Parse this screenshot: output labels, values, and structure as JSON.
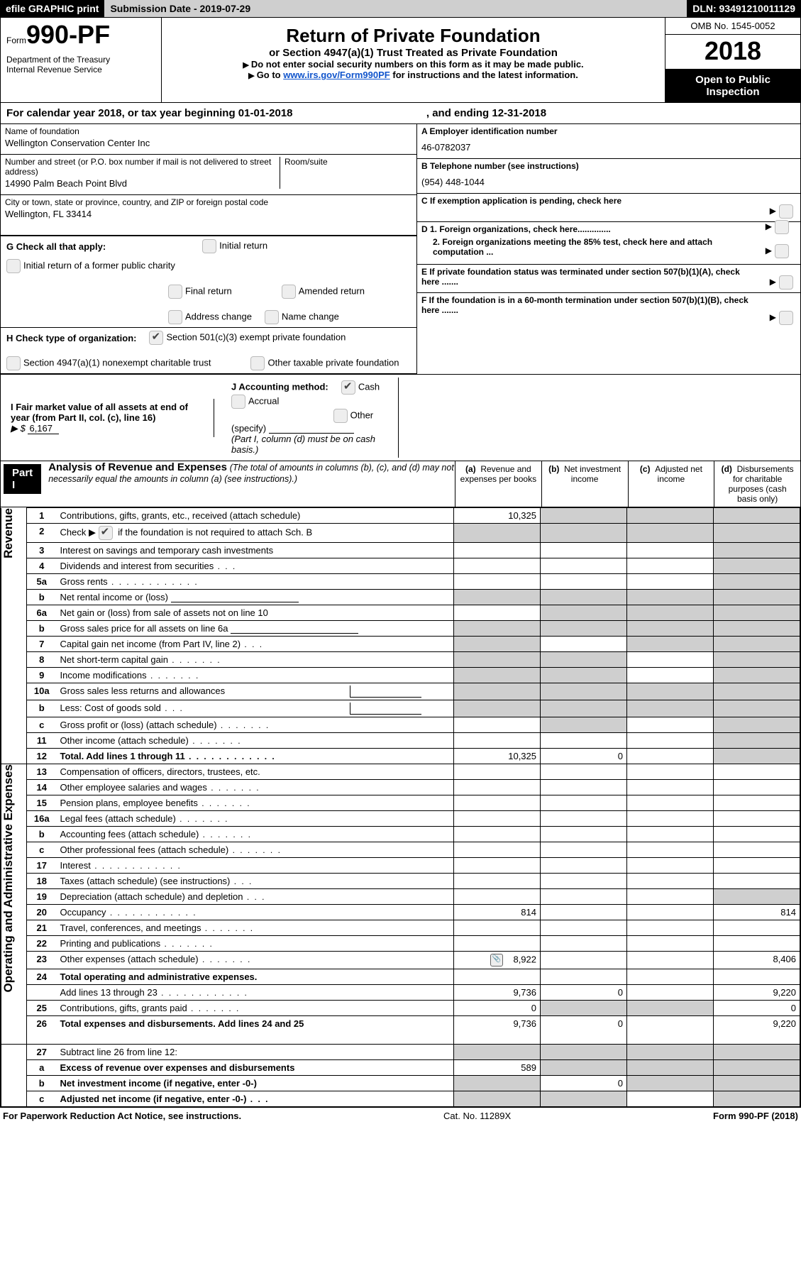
{
  "topbar": {
    "efile": "efile GRAPHIC print",
    "submission_label": "Submission Date - ",
    "submission_date": "2019-07-29",
    "dln_label": "DLN: ",
    "dln": "93491210011129"
  },
  "header": {
    "form_word": "Form",
    "form_number": "990-PF",
    "dept1": "Department of the Treasury",
    "dept2": "Internal Revenue Service",
    "title": "Return of Private Foundation",
    "subtitle": "or Section 4947(a)(1) Trust Treated as Private Foundation",
    "note1": "Do not enter social security numbers on this form as it may be made public.",
    "note2_pre": "Go to ",
    "note2_link": "www.irs.gov/Form990PF",
    "note2_post": " for instructions and the latest information.",
    "omb": "OMB No. 1545-0052",
    "year": "2018",
    "open_public1": "Open to Public",
    "open_public2": "Inspection"
  },
  "calendar_line": {
    "text": "For calendar year 2018, or tax year beginning 01-01-2018",
    "mid": ", and ending ",
    "end": "12-31-2018"
  },
  "left_info": {
    "name_lbl": "Name of foundation",
    "name_val": "Wellington Conservation Center Inc",
    "addr_lbl": "Number and street (or P.O. box number if mail is not delivered to street address)",
    "room_lbl": "Room/suite",
    "addr_val": "14990 Palm Beach Point Blvd",
    "city_lbl": "City or town, state or province, country, and ZIP or foreign postal code",
    "city_val": "Wellington, FL  33414",
    "g_label": "G Check all that apply:",
    "g_opts": [
      "Initial return",
      "Initial return of a former public charity",
      "Final return",
      "Amended return",
      "Address change",
      "Name change"
    ],
    "h_label": "H Check type of organization:",
    "h_opt1": "Section 501(c)(3) exempt private foundation",
    "h_opt2": "Section 4947(a)(1) nonexempt charitable trust",
    "h_opt3": "Other taxable private foundation",
    "i_label": "I Fair market value of all assets at end of year (from Part II, col. (c), line 16)",
    "i_symbol": "▶ $",
    "i_value": "6,167",
    "j_label": "J Accounting method:",
    "j_cash": "Cash",
    "j_accrual": "Accrual",
    "j_other": "Other (specify)",
    "j_note": "(Part I, column (d) must be on cash basis.)"
  },
  "right_info": {
    "a_lbl": "A Employer identification number",
    "a_val": "46-0782037",
    "b_lbl": "B Telephone number (see instructions)",
    "b_val": "(954) 448-1044",
    "c_lbl": "C  If exemption application is pending, check here",
    "d1_lbl": "D 1. Foreign organizations, check here..............",
    "d2_lbl": "2. Foreign organizations meeting the 85% test, check here and attach computation ...",
    "e_lbl": "E  If private foundation status was terminated under section 507(b)(1)(A), check here .......",
    "f_lbl": "F  If the foundation is in a 60-month termination under section 507(b)(1)(B), check here ......."
  },
  "part1": {
    "label": "Part I",
    "title": "Analysis of Revenue and Expenses",
    "note": "(The total of amounts in columns (b), (c), and (d) may not necessarily equal the amounts in column (a) (see instructions).)",
    "col_a": "(a)",
    "col_a_t": "Revenue and expenses per books",
    "col_b": "(b)",
    "col_b_t": "Net investment income",
    "col_c": "(c)",
    "col_c_t": "Adjusted net income",
    "col_d": "(d)",
    "col_d_t": "Disbursements for charitable purposes (cash basis only)"
  },
  "side_labels": {
    "revenue": "Revenue",
    "expenses": "Operating and Administrative Expenses"
  },
  "rows": [
    {
      "n": "1",
      "t": "Contributions, gifts, grants, etc., received (attach schedule)",
      "a": "10,325",
      "b": "",
      "c": "",
      "d": "",
      "shade": [
        "b",
        "c",
        "d"
      ]
    },
    {
      "n": "2",
      "t": "Check ▶",
      "extra": "if the foundation is not required to attach Sch. B",
      "cb": true,
      "shade": [
        "a",
        "b",
        "c",
        "d"
      ]
    },
    {
      "n": "3",
      "t": "Interest on savings and temporary cash investments",
      "shade": [
        "d"
      ]
    },
    {
      "n": "4",
      "t": "Dividends and interest from securities",
      "dots": "mini",
      "shade": [
        "d"
      ]
    },
    {
      "n": "5a",
      "t": "Gross rents",
      "dots": "long",
      "shade": [
        "d"
      ]
    },
    {
      "n": "b",
      "t": "Net rental income or (loss)",
      "inline_input": true,
      "shade": [
        "a",
        "b",
        "c",
        "d"
      ]
    },
    {
      "n": "6a",
      "t": "Net gain or (loss) from sale of assets not on line 10",
      "shade": [
        "b",
        "c",
        "d"
      ]
    },
    {
      "n": "b",
      "t": "Gross sales price for all assets on line 6a",
      "inline_input": true,
      "shade": [
        "a",
        "b",
        "c",
        "d"
      ]
    },
    {
      "n": "7",
      "t": "Capital gain net income (from Part IV, line 2)",
      "dots": "mini",
      "shade": [
        "a",
        "c",
        "d"
      ]
    },
    {
      "n": "8",
      "t": "Net short-term capital gain",
      "dots": "short",
      "shade": [
        "a",
        "b",
        "d"
      ]
    },
    {
      "n": "9",
      "t": "Income modifications",
      "dots": "short",
      "shade": [
        "a",
        "b",
        "d"
      ]
    },
    {
      "n": "10a",
      "t": "Gross sales less returns and allowances",
      "inline_input2": true,
      "shade": [
        "a",
        "b",
        "c",
        "d"
      ]
    },
    {
      "n": "b",
      "t": "Less: Cost of goods sold",
      "dots": "mini",
      "inline_input2": true,
      "shade": [
        "a",
        "b",
        "c",
        "d"
      ]
    },
    {
      "n": "c",
      "t": "Gross profit or (loss) (attach schedule)",
      "dots": "short",
      "shade": [
        "b",
        "d"
      ]
    },
    {
      "n": "11",
      "t": "Other income (attach schedule)",
      "dots": "short",
      "shade": [
        "d"
      ]
    },
    {
      "n": "12",
      "t": "Total. Add lines 1 through 11",
      "bold": true,
      "dots": "long",
      "a": "10,325",
      "b": "0",
      "shade": [
        "d"
      ]
    }
  ],
  "exp_rows": [
    {
      "n": "13",
      "t": "Compensation of officers, directors, trustees, etc."
    },
    {
      "n": "14",
      "t": "Other employee salaries and wages",
      "dots": "short"
    },
    {
      "n": "15",
      "t": "Pension plans, employee benefits",
      "dots": "short"
    },
    {
      "n": "16a",
      "t": "Legal fees (attach schedule)",
      "dots": "short"
    },
    {
      "n": "b",
      "t": "Accounting fees (attach schedule)",
      "dots": "short"
    },
    {
      "n": "c",
      "t": "Other professional fees (attach schedule)",
      "dots": "short"
    },
    {
      "n": "17",
      "t": "Interest",
      "dots": "long"
    },
    {
      "n": "18",
      "t": "Taxes (attach schedule) (see instructions)",
      "dots": "mini"
    },
    {
      "n": "19",
      "t": "Depreciation (attach schedule) and depletion",
      "dots": "mini",
      "shade": [
        "d"
      ]
    },
    {
      "n": "20",
      "t": "Occupancy",
      "dots": "long",
      "a": "814",
      "d": "814"
    },
    {
      "n": "21",
      "t": "Travel, conferences, and meetings",
      "dots": "short"
    },
    {
      "n": "22",
      "t": "Printing and publications",
      "dots": "short"
    },
    {
      "n": "23",
      "t": "Other expenses (attach schedule)",
      "dots": "short",
      "attach": true,
      "a": "8,922",
      "d": "8,406"
    },
    {
      "n": "24",
      "t": "Total operating and administrative expenses.",
      "bold": true,
      "shade_row": true
    },
    {
      "n": "",
      "t": "Add lines 13 through 23",
      "dots": "long",
      "a": "9,736",
      "b": "0",
      "d": "9,220"
    },
    {
      "n": "25",
      "t": "Contributions, gifts, grants paid",
      "dots": "short",
      "a": "0",
      "d": "0",
      "shade": [
        "b",
        "c"
      ]
    },
    {
      "n": "26",
      "t": "Total expenses and disbursements. Add lines 24 and 25",
      "bold": true,
      "tall": true,
      "a": "9,736",
      "b": "0",
      "d": "9,220"
    }
  ],
  "sub_rows": [
    {
      "n": "27",
      "t": "Subtract line 26 from line 12:",
      "shade": [
        "a",
        "b",
        "c",
        "d"
      ]
    },
    {
      "n": "a",
      "t": "Excess of revenue over expenses and disbursements",
      "bold": true,
      "a": "589",
      "shade": [
        "b",
        "c",
        "d"
      ]
    },
    {
      "n": "b",
      "t": "Net investment income (if negative, enter -0-)",
      "bold": true,
      "b": "0",
      "shade": [
        "a",
        "c",
        "d"
      ]
    },
    {
      "n": "c",
      "t": "Adjusted net income (if negative, enter -0-)",
      "bold": true,
      "dots": "mini",
      "shade": [
        "a",
        "b",
        "d"
      ]
    }
  ],
  "footer": {
    "left": "For Paperwork Reduction Act Notice, see instructions.",
    "mid": "Cat. No. 11289X",
    "right": "Form 990-PF (2018)"
  },
  "colors": {
    "shade": "#cfcfcf"
  }
}
